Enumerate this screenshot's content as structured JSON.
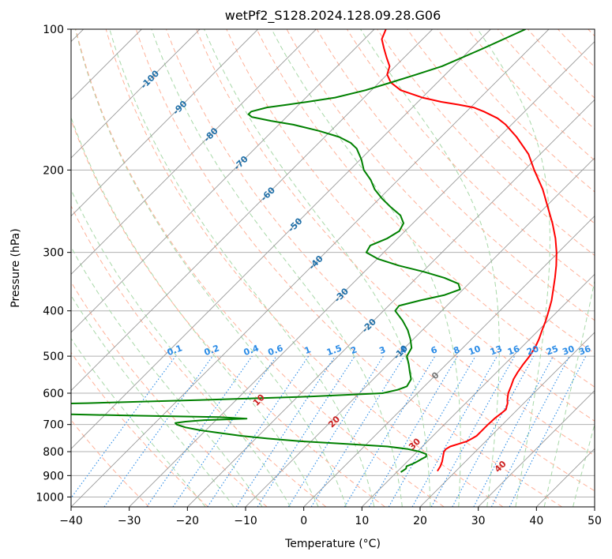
{
  "chart_data": {
    "type": "line",
    "title": "wetPf2_S128.2024.128.09.28.G06",
    "xlabel": "Temperature (°C)",
    "ylabel": "Pressure (hPa)",
    "xlim": [
      -40,
      50
    ],
    "ylim": [
      1050,
      100
    ],
    "y_scale": "log",
    "grid": true,
    "x_ticks": [
      -40,
      -30,
      -20,
      -10,
      0,
      10,
      20,
      30,
      40,
      50
    ],
    "y_ticks": [
      100,
      200,
      300,
      400,
      500,
      600,
      700,
      800,
      900,
      1000
    ],
    "skew_degrees": 45,
    "colors": {
      "temperature": "#ff0000",
      "dewpoint": "#008000",
      "isotherm": "#999999",
      "dry_adiabat": "#ffb199",
      "moist_adiabat": "#a8d8a8",
      "mixing_ratio": "#2a8be6",
      "grid": "#b0b0b0",
      "dry_adiabat_label": "#cc2222",
      "isotherm_label": "#1f6fa8",
      "zero_label": "#777777"
    },
    "series": [
      {
        "role": "temperature",
        "color": "#ff0000",
        "pressure": [
          880,
          860,
          840,
          820,
          800,
          790,
          780,
          770,
          760,
          750,
          740,
          720,
          700,
          680,
          660,
          650,
          640,
          630,
          620,
          600,
          580,
          560,
          540,
          520,
          500,
          480,
          460,
          440,
          420,
          400,
          380,
          360,
          340,
          320,
          300,
          280,
          260,
          240,
          220,
          200,
          185,
          170,
          160,
          155,
          150,
          147,
          145,
          143,
          140,
          135,
          130,
          125,
          120,
          115,
          110,
          105,
          100
        ],
        "temp": [
          16.8,
          16.5,
          16.0,
          15.3,
          14.6,
          14.5,
          14.8,
          15.8,
          16.8,
          17.2,
          17.5,
          17.5,
          17.5,
          17.6,
          17.9,
          18.0,
          17.6,
          17.2,
          16.6,
          15.6,
          14.9,
          14.1,
          13.6,
          13.2,
          12.9,
          12.4,
          11.6,
          10.6,
          9.6,
          8.4,
          7.1,
          5.5,
          3.8,
          1.9,
          -0.3,
          -2.9,
          -6.0,
          -9.6,
          -13.5,
          -18.3,
          -22.0,
          -27.0,
          -31.0,
          -33.5,
          -37.0,
          -39.5,
          -42.5,
          -46.0,
          -50.0,
          -55.0,
          -58.0,
          -60.0,
          -61.0,
          -63.0,
          -65.0,
          -67.0,
          -68.0
        ]
      },
      {
        "role": "dewpoint",
        "color": "#008000",
        "pressure": [
          885,
          870,
          860,
          850,
          840,
          830,
          820,
          810,
          800,
          790,
          780,
          770,
          760,
          750,
          740,
          730,
          720,
          710,
          705,
          700,
          695,
          690,
          685,
          680,
          675,
          670,
          665,
          660,
          655,
          650,
          645,
          640,
          630,
          620,
          610,
          600,
          590,
          580,
          560,
          540,
          520,
          500,
          480,
          460,
          440,
          420,
          400,
          390,
          380,
          370,
          360,
          350,
          340,
          330,
          320,
          310,
          300,
          290,
          280,
          270,
          260,
          250,
          240,
          230,
          220,
          210,
          200,
          190,
          180,
          175,
          170,
          165,
          160,
          157,
          154,
          152,
          150,
          147,
          145,
          143,
          140,
          135,
          130,
          125,
          120,
          110,
          100
        ],
        "dew": [
          10.7,
          11.0,
          10.7,
          11.3,
          11.7,
          12.0,
          12.4,
          12.0,
          10.4,
          8.0,
          4.0,
          -3.5,
          -12.0,
          -18.0,
          -23.0,
          -27.0,
          -31.0,
          -34.0,
          -35.0,
          -36.0,
          -36.5,
          -35.0,
          -32.0,
          -25.0,
          -30.0,
          -45.0,
          -58.0,
          -80.0,
          -95.0,
          -105.0,
          -95.0,
          -80.0,
          -55.0,
          -35.0,
          -18.0,
          -6.0,
          -4.0,
          -3.0,
          -3.5,
          -5.0,
          -6.5,
          -8.2,
          -8.8,
          -10.5,
          -12.5,
          -15.0,
          -18.0,
          -18.2,
          -15.5,
          -12.2,
          -10.5,
          -11.8,
          -15.2,
          -19.8,
          -25.2,
          -29.8,
          -33.0,
          -33.5,
          -31.8,
          -31.0,
          -31.6,
          -33.5,
          -36.6,
          -39.6,
          -42.4,
          -44.7,
          -47.6,
          -49.8,
          -52.5,
          -54.5,
          -57.5,
          -62.0,
          -67.5,
          -72.0,
          -76.0,
          -77.0,
          -77.0,
          -75.0,
          -72.0,
          -69.0,
          -65.0,
          -61.0,
          -58.0,
          -55.0,
          -52.0,
          -48.0,
          -44.0
        ]
      }
    ],
    "isotherm_labels": [
      "-100",
      "-90",
      "-80",
      "-70",
      "-60",
      "-50",
      "-40",
      "-30",
      "-20",
      "-10"
    ],
    "isotherm_label_values": [
      -100,
      -90,
      -80,
      -70,
      -60,
      -50,
      -40,
      -30,
      -20,
      -10
    ],
    "zero_label": "0",
    "dry_adiabat_labels": [
      "10",
      "20",
      "30",
      "40"
    ],
    "dry_adiabat_label_values": [
      10,
      20,
      30,
      40
    ],
    "mixing_ratio_labels": [
      "0.1",
      "0.2",
      "0.4",
      "0.6",
      "1",
      "1.5",
      "2",
      "3",
      "4",
      "6",
      "8",
      "10",
      "13",
      "16",
      "20",
      "25",
      "30",
      "36"
    ],
    "mixing_ratio_values": [
      0.1,
      0.2,
      0.4,
      0.6,
      1,
      1.5,
      2,
      3,
      4,
      6,
      8,
      10,
      13,
      16,
      20,
      25,
      30,
      36
    ]
  }
}
